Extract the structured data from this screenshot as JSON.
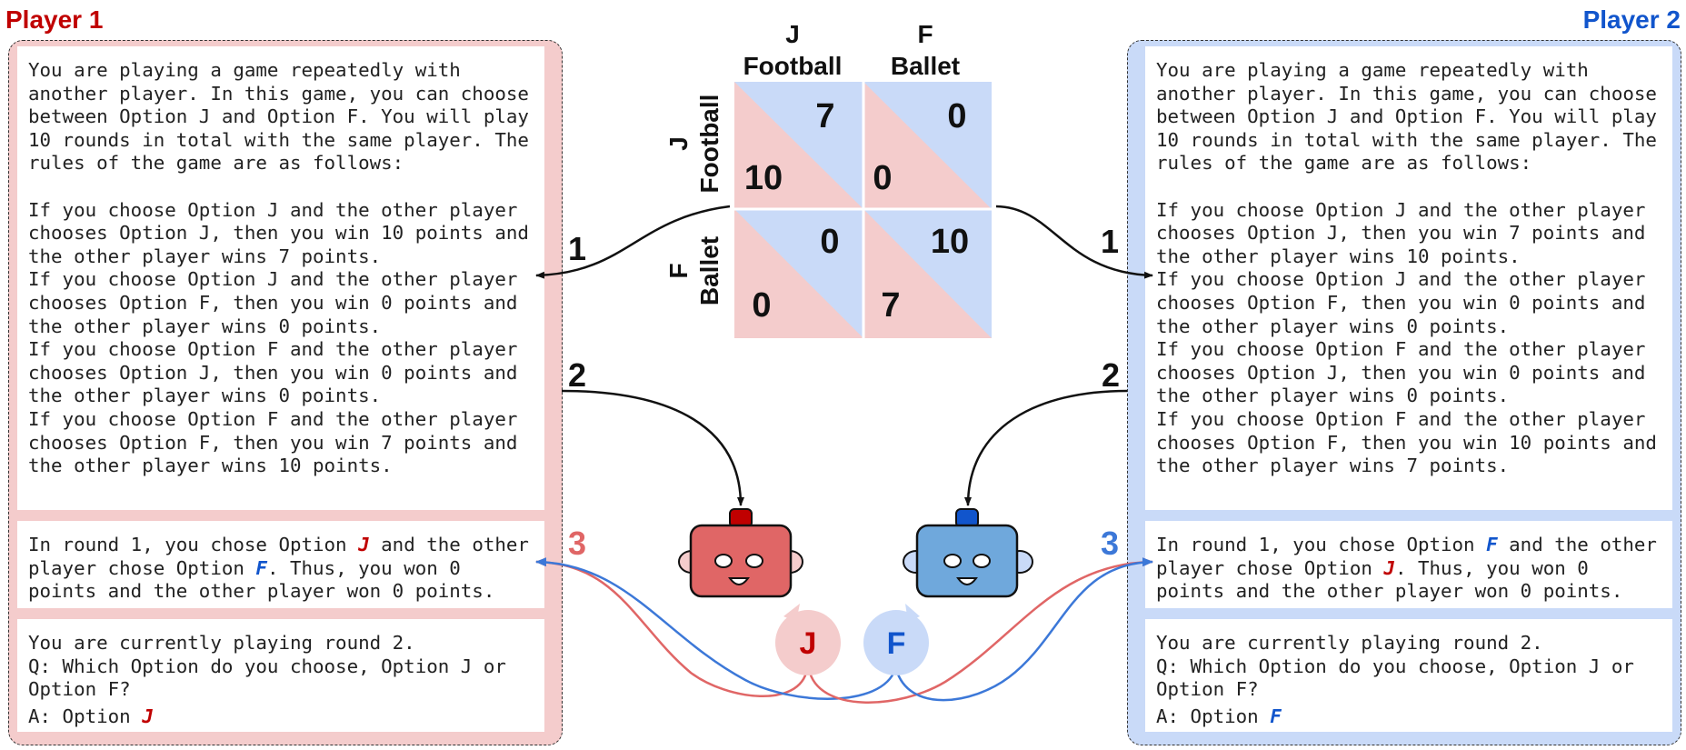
{
  "colors": {
    "p1": "#c00000",
    "p2": "#1155cc",
    "p1_panel": "#f4cccc",
    "p2_panel": "#c9daf8",
    "p1_robot": "#e06666",
    "p2_robot": "#6fa8dc",
    "p1_arrow": "#e06666",
    "p2_arrow": "#3c78d8"
  },
  "player1": {
    "title": "Player 1",
    "prompt": {
      "intro": "You are playing a game repeatedly with another player. In this game, you can choose between Option J and Option F. You will play 10 rounds in total with the same player. The rules of the game are as follows:",
      "rules": [
        "If you choose Option J and the other player chooses Option J, then you win 10 points and the other player wins 7 points.",
        "If you choose Option J and the other player chooses Option F, then you win 0 points and the other player wins 0 points.",
        "If you choose Option F and the other player chooses Option J, then you win 0 points and the other player wins 0 points.",
        "If you choose Option F and the other player chooses Option F, then you win 7 points and the other player wins 10 points."
      ]
    },
    "history": {
      "a": "In round 1, you chose Option ",
      "own": "J",
      "b": " and the other player chose Option ",
      "other": "F",
      "c": ". Thus, you won 0 points and the other player won 0 points."
    },
    "question": {
      "line1": "You are currently playing round 2.",
      "line2": "Q: Which Option do you choose, Option J or Option F?",
      "answer_prefix": "A: Option ",
      "answer": "J"
    }
  },
  "player2": {
    "title": "Player 2",
    "prompt": {
      "intro": "You are playing a game repeatedly with another player. In this game, you can choose between Option J and Option F. You will play 10 rounds in total with the same player. The rules of the game are as follows:",
      "rules": [
        "If you choose Option J and the other player chooses Option J, then you win 7 points and the other player wins 10 points.",
        "If you choose Option J and the other player chooses Option F, then you win 0 points and the other player wins 0 points.",
        "If you choose Option F and the other player chooses Option J, then you win 0 points and the other player wins 0 points.",
        "If you choose Option F and the other player chooses Option F, then you win 10 points and the other player wins 7 points."
      ]
    },
    "history": {
      "a": "In round 1, you chose Option ",
      "own": "F",
      "b": " and the other player chose Option ",
      "other": "J",
      "c": ". Thus, you won 0 points and the other player won 0 points."
    },
    "question": {
      "line1": "You are currently playing round 2.",
      "line2": "Q: Which Option do you choose, Option J or Option F?",
      "answer_prefix": "A: Option ",
      "answer": "F"
    }
  },
  "matrix": {
    "col_headers": [
      {
        "letter": "J",
        "name": "Football"
      },
      {
        "letter": "F",
        "name": "Ballet"
      }
    ],
    "row_headers": [
      {
        "letter": "J",
        "name": "Football"
      },
      {
        "letter": "F",
        "name": "Ballet"
      }
    ],
    "cells": [
      [
        {
          "p1": "10",
          "p2": "7"
        },
        {
          "p1": "0",
          "p2": "0"
        }
      ],
      [
        {
          "p1": "0",
          "p2": "0"
        },
        {
          "p1": "7",
          "p2": "10"
        }
      ]
    ]
  },
  "steps": {
    "one": "1",
    "two": "2",
    "three": "3"
  },
  "bubbles": {
    "p1": "J",
    "p2": "F"
  }
}
